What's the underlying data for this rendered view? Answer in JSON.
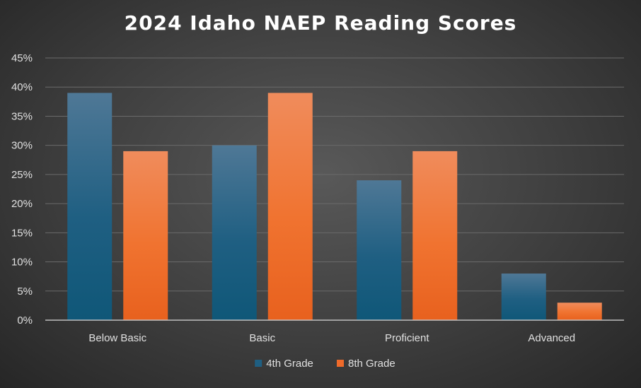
{
  "chart_data": {
    "type": "bar",
    "title": "2024 Idaho NAEP Reading Scores",
    "xlabel": "",
    "ylabel": "",
    "categories": [
      "Below Basic",
      "Basic",
      "Proficient",
      "Advanced"
    ],
    "series": [
      {
        "name": "4th Grade",
        "values": [
          39,
          30,
          24,
          8
        ],
        "color": "#1f5f82"
      },
      {
        "name": "8th Grade",
        "values": [
          29,
          39,
          29,
          3
        ],
        "color": "#ef6a2a"
      }
    ],
    "ylim": [
      0,
      45
    ],
    "yticks": [
      0,
      5,
      10,
      15,
      20,
      25,
      30,
      35,
      40,
      45
    ],
    "ytick_labels": [
      "0%",
      "5%",
      "10%",
      "15%",
      "20%",
      "25%",
      "30%",
      "35%",
      "40%",
      "45%"
    ],
    "grid": true,
    "legend_position": "bottom"
  }
}
